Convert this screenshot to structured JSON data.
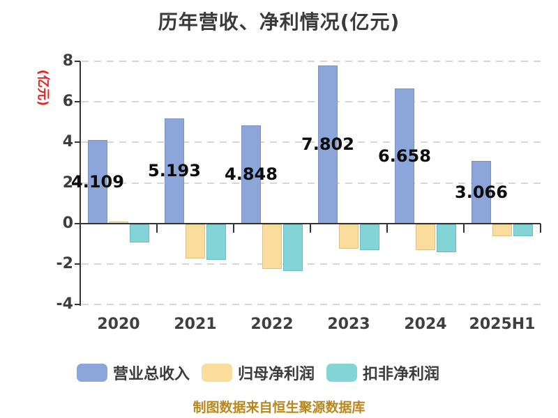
{
  "chart_data": {
    "type": "bar",
    "title": "历年营收、净利情况(亿元)",
    "y_axis_unit": "(亿元)",
    "categories": [
      "2020",
      "2021",
      "2022",
      "2023",
      "2024",
      "2025H1"
    ],
    "series": [
      {
        "name": "营业总收入",
        "color": "#8ca6d9",
        "values": [
          4.109,
          5.193,
          4.848,
          7.802,
          6.658,
          3.066
        ],
        "value_labels": [
          "4.109",
          "5.193",
          "4.848",
          "7.802",
          "6.658",
          "3.066"
        ]
      },
      {
        "name": "归母净利润",
        "color": "#fadc9c",
        "values": [
          0.1,
          -1.7,
          -2.2,
          -1.2,
          -1.3,
          -0.6
        ]
      },
      {
        "name": "扣非净利润",
        "color": "#82d4d6",
        "values": [
          -0.9,
          -1.75,
          -2.3,
          -1.3,
          -1.4,
          -0.6
        ]
      }
    ],
    "ylim": [
      -4,
      8
    ],
    "yticks": [
      8,
      6,
      4,
      2,
      0,
      -2,
      -4
    ],
    "grid": true,
    "legend_position": "bottom",
    "footer": "制图数据来自恒生聚源数据库"
  },
  "colors": {
    "revenue_bar": "#8ca6d9",
    "net_profit_bar": "#fadc9c",
    "deducted_profit_bar": "#82d4d6",
    "axis": "#333333",
    "gridline": "#d6d6d6",
    "unit_label_text": "#e62222",
    "footer_text": "#b8871c",
    "title_text": "#3a3a3a",
    "value_label_text": "#0d0d0d"
  }
}
